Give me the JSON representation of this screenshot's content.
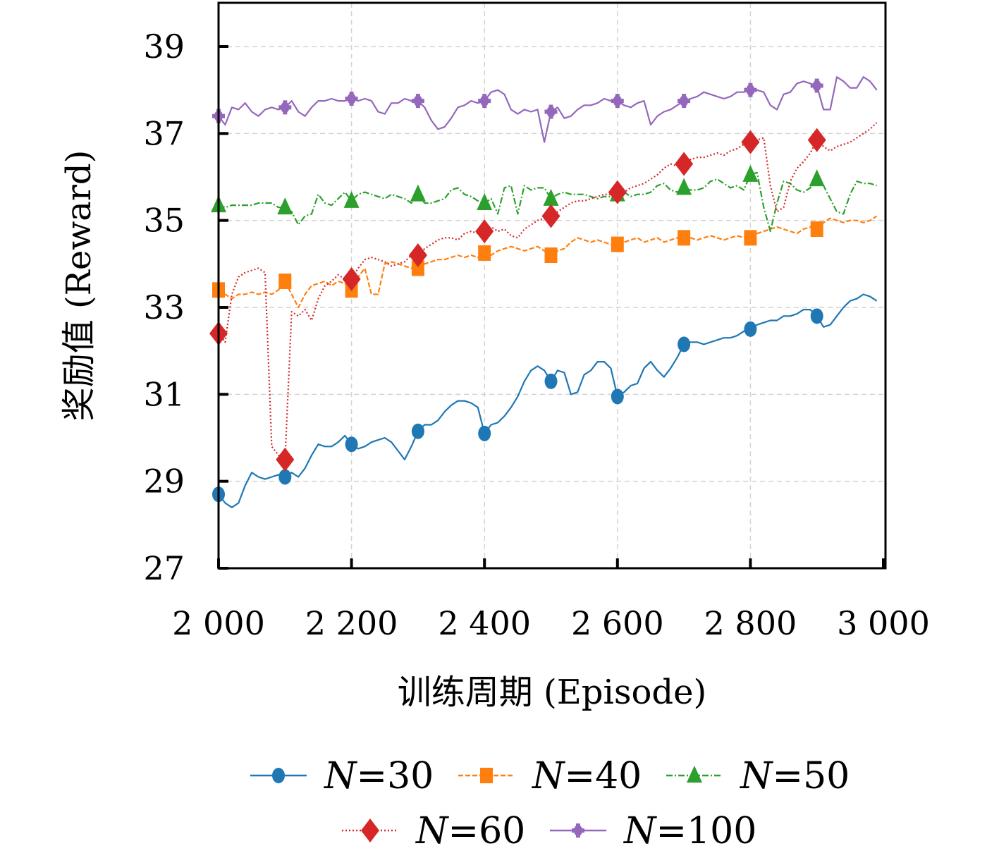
{
  "chart_data": {
    "type": "line",
    "title": "",
    "xlabel": "训练周期 (Episode)",
    "ylabel": "奖励值 (Reward)",
    "xlim": [
      2000,
      3000
    ],
    "ylim": [
      27,
      40
    ],
    "xticks": [
      2000,
      2200,
      2400,
      2600,
      2800,
      3000
    ],
    "xtick_labels": [
      "2 000",
      "2 200",
      "2 400",
      "2 600",
      "2 800",
      "3 000"
    ],
    "yticks": [
      27,
      29,
      31,
      33,
      35,
      37,
      39
    ],
    "ytick_labels": [
      "27",
      "29",
      "31",
      "33",
      "35",
      "37",
      "39"
    ],
    "grid": true,
    "legend_position": "bottom",
    "marker_every": 100,
    "series": [
      {
        "name": "N=30",
        "legend_var": "N",
        "legend_value": "=30",
        "color": "#1f77b4",
        "linestyle": "solid",
        "marker": "circle",
        "x": [
          2000,
          2010,
          2020,
          2030,
          2040,
          2050,
          2060,
          2070,
          2080,
          2090,
          2100,
          2110,
          2120,
          2130,
          2140,
          2150,
          2160,
          2170,
          2180,
          2190,
          2200,
          2210,
          2220,
          2230,
          2240,
          2250,
          2260,
          2270,
          2280,
          2290,
          2300,
          2310,
          2320,
          2330,
          2340,
          2350,
          2360,
          2370,
          2380,
          2390,
          2400,
          2410,
          2420,
          2430,
          2440,
          2450,
          2460,
          2470,
          2480,
          2490,
          2500,
          2510,
          2520,
          2530,
          2540,
          2550,
          2560,
          2570,
          2580,
          2590,
          2600,
          2610,
          2620,
          2630,
          2640,
          2650,
          2660,
          2670,
          2680,
          2690,
          2700,
          2710,
          2720,
          2730,
          2740,
          2750,
          2760,
          2770,
          2780,
          2790,
          2800,
          2810,
          2820,
          2830,
          2840,
          2850,
          2860,
          2870,
          2880,
          2890,
          2900,
          2910,
          2920,
          2930,
          2940,
          2950,
          2960,
          2970,
          2980,
          2990
        ],
        "y": [
          28.7,
          28.5,
          28.4,
          28.5,
          28.9,
          29.2,
          29.1,
          29.05,
          29.1,
          29.15,
          29.1,
          29.2,
          29.1,
          29.3,
          29.6,
          29.85,
          29.8,
          29.8,
          29.9,
          30.05,
          29.85,
          29.75,
          29.8,
          29.9,
          29.95,
          30.0,
          29.9,
          29.7,
          29.5,
          29.8,
          30.15,
          30.3,
          30.3,
          30.4,
          30.6,
          30.75,
          30.85,
          30.85,
          30.8,
          30.7,
          30.1,
          30.3,
          30.35,
          30.5,
          30.7,
          30.95,
          31.3,
          31.55,
          31.65,
          31.55,
          31.3,
          31.55,
          31.5,
          31.0,
          31.05,
          31.45,
          31.55,
          31.75,
          31.75,
          31.6,
          30.95,
          31.05,
          31.2,
          31.25,
          31.6,
          31.75,
          31.55,
          31.4,
          31.6,
          31.85,
          32.15,
          32.2,
          32.2,
          32.15,
          32.2,
          32.25,
          32.3,
          32.3,
          32.35,
          32.45,
          32.5,
          32.6,
          32.65,
          32.7,
          32.7,
          32.8,
          32.8,
          32.85,
          32.95,
          32.95,
          32.8,
          32.55,
          32.6,
          32.8,
          33.0,
          33.15,
          33.2,
          33.3,
          33.25,
          33.15
        ]
      },
      {
        "name": "N=40",
        "legend_var": "N",
        "legend_value": "=40",
        "color": "#ff7f0e",
        "linestyle": "dashed",
        "marker": "square",
        "x": [
          2000,
          2010,
          2020,
          2030,
          2040,
          2050,
          2060,
          2070,
          2080,
          2090,
          2100,
          2110,
          2120,
          2130,
          2140,
          2150,
          2160,
          2170,
          2180,
          2190,
          2200,
          2210,
          2220,
          2230,
          2240,
          2250,
          2260,
          2270,
          2280,
          2290,
          2300,
          2310,
          2320,
          2330,
          2340,
          2350,
          2360,
          2370,
          2380,
          2390,
          2400,
          2410,
          2420,
          2430,
          2440,
          2450,
          2460,
          2470,
          2480,
          2490,
          2500,
          2510,
          2520,
          2530,
          2540,
          2550,
          2560,
          2570,
          2580,
          2590,
          2600,
          2610,
          2620,
          2630,
          2640,
          2650,
          2660,
          2670,
          2680,
          2690,
          2700,
          2710,
          2720,
          2730,
          2740,
          2750,
          2760,
          2770,
          2780,
          2790,
          2800,
          2810,
          2820,
          2830,
          2840,
          2850,
          2860,
          2870,
          2880,
          2890,
          2900,
          2910,
          2920,
          2930,
          2940,
          2950,
          2960,
          2970,
          2980,
          2990
        ],
        "y": [
          33.4,
          33.3,
          33.2,
          33.3,
          33.3,
          33.35,
          33.3,
          33.35,
          33.3,
          33.4,
          33.6,
          33.3,
          33.0,
          33.3,
          33.5,
          33.55,
          33.6,
          33.5,
          33.6,
          33.55,
          33.4,
          33.7,
          33.9,
          33.3,
          33.3,
          34.0,
          34.05,
          34.0,
          33.95,
          33.9,
          33.9,
          34.0,
          34.05,
          34.1,
          34.1,
          34.15,
          34.2,
          34.15,
          34.2,
          34.15,
          34.25,
          34.2,
          34.3,
          34.35,
          34.4,
          34.35,
          34.3,
          34.35,
          34.4,
          34.3,
          34.2,
          34.3,
          34.35,
          34.5,
          34.6,
          34.55,
          34.5,
          34.55,
          34.5,
          34.45,
          34.45,
          34.5,
          34.55,
          34.6,
          34.5,
          34.55,
          34.6,
          34.5,
          34.55,
          34.6,
          34.6,
          34.6,
          34.55,
          34.6,
          34.65,
          34.6,
          34.55,
          34.6,
          34.65,
          34.6,
          34.6,
          34.7,
          34.75,
          34.8,
          34.85,
          34.8,
          34.75,
          34.7,
          34.8,
          34.85,
          34.8,
          34.95,
          35.05,
          35.0,
          34.95,
          35.0,
          35.0,
          34.95,
          35.0,
          35.1
        ]
      },
      {
        "name": "N=50",
        "legend_var": "N",
        "legend_value": "=50",
        "color": "#2ca02c",
        "linestyle": "dashdot",
        "marker": "triangle",
        "x": [
          2000,
          2010,
          2020,
          2030,
          2040,
          2050,
          2060,
          2070,
          2080,
          2090,
          2100,
          2110,
          2120,
          2130,
          2140,
          2150,
          2160,
          2170,
          2180,
          2190,
          2200,
          2210,
          2220,
          2230,
          2240,
          2250,
          2260,
          2270,
          2280,
          2290,
          2300,
          2310,
          2320,
          2330,
          2340,
          2350,
          2360,
          2370,
          2380,
          2390,
          2400,
          2410,
          2420,
          2430,
          2440,
          2450,
          2460,
          2470,
          2480,
          2490,
          2500,
          2510,
          2520,
          2530,
          2540,
          2550,
          2560,
          2570,
          2580,
          2590,
          2600,
          2610,
          2620,
          2630,
          2640,
          2650,
          2660,
          2670,
          2680,
          2690,
          2700,
          2710,
          2720,
          2730,
          2740,
          2750,
          2760,
          2770,
          2780,
          2790,
          2800,
          2810,
          2820,
          2830,
          2840,
          2850,
          2860,
          2870,
          2880,
          2890,
          2900,
          2910,
          2920,
          2930,
          2940,
          2950,
          2960,
          2970,
          2980,
          2990
        ],
        "y": [
          35.35,
          35.3,
          35.35,
          35.35,
          35.35,
          35.35,
          35.4,
          35.4,
          35.4,
          35.3,
          35.3,
          35.2,
          34.9,
          35.1,
          35.15,
          35.6,
          35.4,
          35.35,
          35.5,
          35.65,
          35.45,
          35.6,
          35.65,
          35.6,
          35.55,
          35.5,
          35.6,
          35.55,
          35.5,
          35.4,
          35.6,
          35.4,
          35.4,
          35.45,
          35.5,
          35.7,
          35.75,
          35.6,
          35.55,
          35.45,
          35.4,
          35.5,
          35.15,
          35.75,
          35.8,
          35.15,
          35.8,
          35.7,
          35.75,
          35.75,
          35.5,
          35.6,
          35.65,
          35.6,
          35.6,
          35.6,
          35.55,
          35.5,
          35.55,
          35.55,
          35.6,
          35.65,
          35.55,
          35.6,
          35.6,
          35.65,
          35.8,
          35.85,
          35.7,
          35.65,
          35.75,
          35.7,
          35.7,
          35.75,
          35.9,
          35.95,
          35.85,
          35.75,
          35.8,
          35.7,
          36.05,
          36.1,
          35.3,
          34.75,
          35.4,
          35.9,
          35.85,
          35.7,
          35.65,
          35.75,
          35.95,
          35.8,
          35.5,
          35.2,
          35.15,
          35.6,
          35.9,
          35.85,
          35.85,
          35.8
        ]
      },
      {
        "name": "N=60",
        "legend_var": "N",
        "legend_value": "=60",
        "color": "#d62728",
        "linestyle": "dotted",
        "marker": "diamond",
        "x": [
          2000,
          2010,
          2020,
          2030,
          2040,
          2050,
          2060,
          2070,
          2080,
          2090,
          2100,
          2110,
          2120,
          2130,
          2140,
          2150,
          2160,
          2170,
          2180,
          2190,
          2200,
          2210,
          2220,
          2230,
          2240,
          2250,
          2260,
          2270,
          2280,
          2290,
          2300,
          2310,
          2320,
          2330,
          2340,
          2350,
          2360,
          2370,
          2380,
          2390,
          2400,
          2410,
          2420,
          2430,
          2440,
          2450,
          2460,
          2470,
          2480,
          2490,
          2500,
          2510,
          2520,
          2530,
          2540,
          2550,
          2560,
          2570,
          2580,
          2590,
          2600,
          2610,
          2620,
          2630,
          2640,
          2650,
          2660,
          2670,
          2680,
          2690,
          2700,
          2710,
          2720,
          2730,
          2740,
          2750,
          2760,
          2770,
          2780,
          2790,
          2800,
          2810,
          2820,
          2830,
          2840,
          2850,
          2860,
          2870,
          2880,
          2890,
          2900,
          2910,
          2920,
          2930,
          2940,
          2950,
          2960,
          2970,
          2980,
          2990
        ],
        "y": [
          32.4,
          32.2,
          33.3,
          33.7,
          33.8,
          33.85,
          33.9,
          33.8,
          29.8,
          29.6,
          29.5,
          32.9,
          32.8,
          32.95,
          32.7,
          33.2,
          33.5,
          33.6,
          33.75,
          33.65,
          33.65,
          33.9,
          34.1,
          34.15,
          34.1,
          34.05,
          33.95,
          34.0,
          34.05,
          34.2,
          34.2,
          34.35,
          34.45,
          34.55,
          34.6,
          34.6,
          34.55,
          34.7,
          34.75,
          34.7,
          34.75,
          34.85,
          34.75,
          34.8,
          34.65,
          34.6,
          34.8,
          34.9,
          35.0,
          35.05,
          35.1,
          35.2,
          35.3,
          35.4,
          35.45,
          35.45,
          35.5,
          35.55,
          35.6,
          35.6,
          35.65,
          35.65,
          35.75,
          35.8,
          35.85,
          35.95,
          36.05,
          36.2,
          36.3,
          36.25,
          36.3,
          36.4,
          36.45,
          36.45,
          36.5,
          36.55,
          36.5,
          36.6,
          36.65,
          36.75,
          36.8,
          36.85,
          36.9,
          35.8,
          35.2,
          35.3,
          35.9,
          36.2,
          36.35,
          36.55,
          36.85,
          36.7,
          36.6,
          36.7,
          36.75,
          36.8,
          36.9,
          37.0,
          37.1,
          37.25
        ]
      },
      {
        "name": "N=100",
        "legend_var": "N",
        "legend_value": "=100",
        "color": "#9467bd",
        "linestyle": "solid",
        "marker": "plus",
        "x": [
          2000,
          2010,
          2020,
          2030,
          2040,
          2050,
          2060,
          2070,
          2080,
          2090,
          2100,
          2110,
          2120,
          2130,
          2140,
          2150,
          2160,
          2170,
          2180,
          2190,
          2200,
          2210,
          2220,
          2230,
          2240,
          2250,
          2260,
          2270,
          2280,
          2290,
          2300,
          2310,
          2320,
          2330,
          2340,
          2350,
          2360,
          2370,
          2380,
          2390,
          2400,
          2410,
          2420,
          2430,
          2440,
          2450,
          2460,
          2470,
          2480,
          2490,
          2500,
          2510,
          2520,
          2530,
          2540,
          2550,
          2560,
          2570,
          2580,
          2590,
          2600,
          2610,
          2620,
          2630,
          2640,
          2650,
          2660,
          2670,
          2680,
          2690,
          2700,
          2710,
          2720,
          2730,
          2740,
          2750,
          2760,
          2770,
          2780,
          2790,
          2800,
          2810,
          2820,
          2830,
          2840,
          2850,
          2860,
          2870,
          2880,
          2890,
          2900,
          2910,
          2920,
          2930,
          2940,
          2950,
          2960,
          2970,
          2980,
          2990
        ],
        "y": [
          37.4,
          37.2,
          37.6,
          37.55,
          37.7,
          37.5,
          37.4,
          37.55,
          37.6,
          37.55,
          37.6,
          37.75,
          37.5,
          37.4,
          37.6,
          37.75,
          37.75,
          37.8,
          37.75,
          37.75,
          37.8,
          37.75,
          37.8,
          37.75,
          37.5,
          37.45,
          37.7,
          37.7,
          37.8,
          37.75,
          37.75,
          37.6,
          37.3,
          37.1,
          37.15,
          37.35,
          37.6,
          37.65,
          37.75,
          37.7,
          37.75,
          37.95,
          38.0,
          37.9,
          37.55,
          37.45,
          37.55,
          37.5,
          37.55,
          36.8,
          37.5,
          37.6,
          37.35,
          37.4,
          37.55,
          37.65,
          37.65,
          37.7,
          37.8,
          37.75,
          37.75,
          37.65,
          37.6,
          37.7,
          37.75,
          37.2,
          37.4,
          37.5,
          37.55,
          37.65,
          37.75,
          37.8,
          37.85,
          37.95,
          37.9,
          37.85,
          37.8,
          37.85,
          37.95,
          37.95,
          38.0,
          38.0,
          37.95,
          37.65,
          37.55,
          37.9,
          37.95,
          38.15,
          38.2,
          38.15,
          38.1,
          37.55,
          37.55,
          38.3,
          38.2,
          38.05,
          38.05,
          38.3,
          38.2,
          38.0
        ]
      }
    ]
  }
}
